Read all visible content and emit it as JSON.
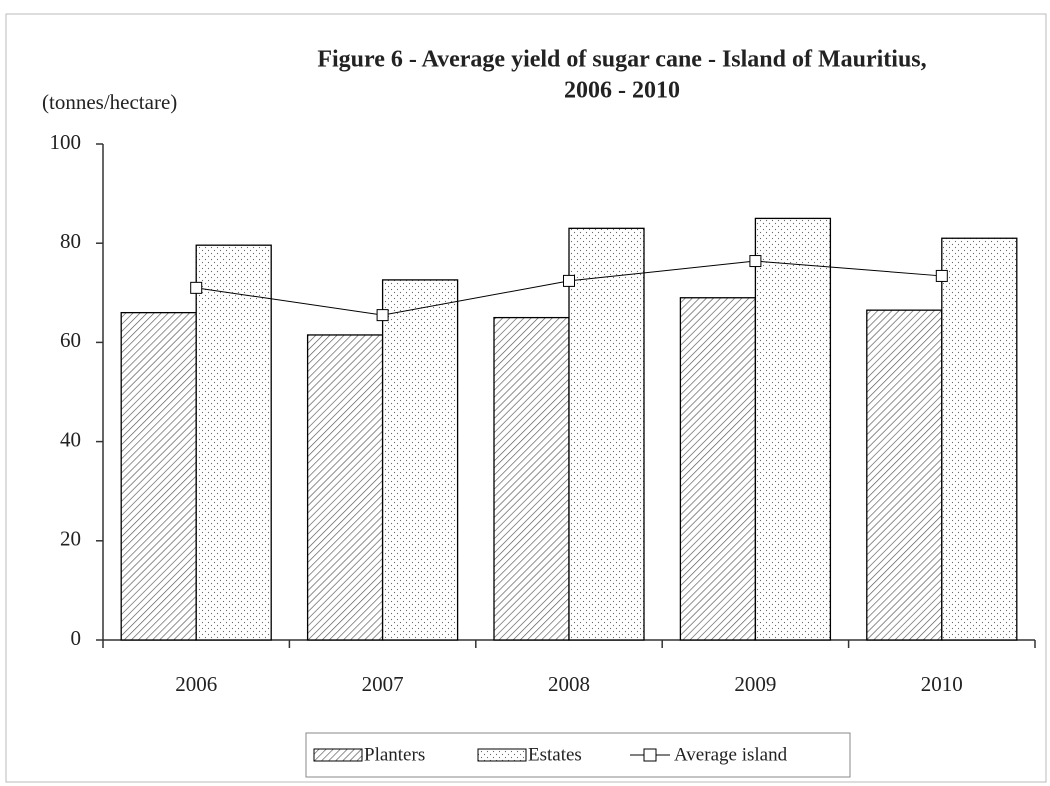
{
  "chart_data": {
    "type": "bar",
    "title": [
      "Figure 6 - Average yield of sugar cane - Island of Mauritius,",
      "2006 - 2010"
    ],
    "y_label": "(tonnes/hectare)",
    "categories": [
      "2006",
      "2007",
      "2008",
      "2009",
      "2010"
    ],
    "series": [
      {
        "name": "Planters",
        "color": "#000000",
        "pattern": "hatch",
        "values": [
          66,
          61.5,
          65,
          69,
          66.5
        ]
      },
      {
        "name": "Estates",
        "color": "#000000",
        "pattern": "dots",
        "values": [
          79.6,
          72.6,
          83,
          85,
          81
        ]
      },
      {
        "name": "Average island",
        "type": "line",
        "color": "#000000",
        "values": [
          71,
          65.5,
          72.4,
          76.4,
          73.4
        ]
      }
    ],
    "ylim": [
      0,
      100
    ],
    "yticks": [
      0,
      20,
      40,
      60,
      80,
      100
    ],
    "grid": false,
    "legend": "bottom"
  }
}
